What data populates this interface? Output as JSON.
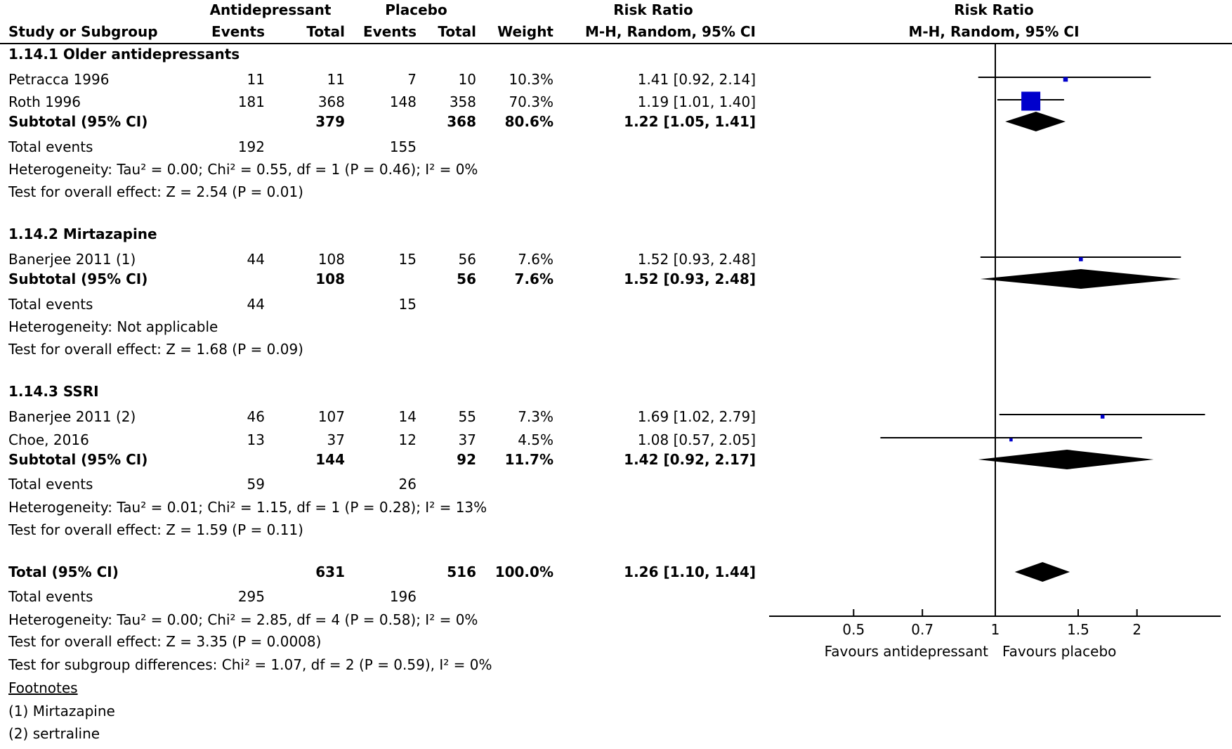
{
  "header": {
    "study_col": "Study or Subgroup",
    "group_antidepressant": "Antidepressant",
    "group_placebo": "Placebo",
    "events": "Events",
    "total": "Total",
    "weight": "Weight",
    "rr_title": "Risk Ratio",
    "rr_method": "M-H, Random, 95% CI",
    "plot_title": "Risk Ratio",
    "plot_method": "M-H, Random, 95% CI"
  },
  "rows": [
    {
      "kind": "heading",
      "label": "1.14.1 Older antidepressants"
    },
    {
      "kind": "study",
      "label": "Petracca 1996",
      "ae": "11",
      "at": "11",
      "pe": "7",
      "pt": "10",
      "weight": "10.3%",
      "rr": "1.41 [0.92, 2.14]"
    },
    {
      "kind": "study",
      "label": "Roth 1996",
      "ae": "181",
      "at": "368",
      "pe": "148",
      "pt": "358",
      "weight": "70.3%",
      "rr": "1.19 [1.01, 1.40]"
    },
    {
      "kind": "subtotal",
      "label": "Subtotal (95% CI)",
      "at": "379",
      "pt": "368",
      "weight": "80.6%",
      "rr": "1.22 [1.05, 1.41]"
    },
    {
      "kind": "events",
      "label": "Total events",
      "ae": "192",
      "pe": "155"
    },
    {
      "kind": "text",
      "label": "Heterogeneity: Tau² = 0.00; Chi² = 0.55, df = 1 (P = 0.46); I² = 0%"
    },
    {
      "kind": "text",
      "label": "Test for overall effect: Z = 2.54 (P = 0.01)"
    },
    {
      "kind": "heading",
      "label": "1.14.2 Mirtazapine"
    },
    {
      "kind": "study",
      "label": "Banerjee 2011 (1)",
      "ae": "44",
      "at": "108",
      "pe": "15",
      "pt": "56",
      "weight": "7.6%",
      "rr": "1.52 [0.93, 2.48]"
    },
    {
      "kind": "subtotal",
      "label": "Subtotal (95% CI)",
      "at": "108",
      "pt": "56",
      "weight": "7.6%",
      "rr": "1.52 [0.93, 2.48]"
    },
    {
      "kind": "events",
      "label": "Total events",
      "ae": "44",
      "pe": "15"
    },
    {
      "kind": "text",
      "label": "Heterogeneity: Not applicable"
    },
    {
      "kind": "text",
      "label": "Test for overall effect: Z = 1.68 (P = 0.09)"
    },
    {
      "kind": "heading",
      "label": "1.14.3 SSRI"
    },
    {
      "kind": "study",
      "label": "Banerjee 2011 (2)",
      "ae": "46",
      "at": "107",
      "pe": "14",
      "pt": "55",
      "weight": "7.3%",
      "rr": "1.69 [1.02, 2.79]"
    },
    {
      "kind": "study",
      "label": "Choe, 2016",
      "ae": "13",
      "at": "37",
      "pe": "12",
      "pt": "37",
      "weight": "4.5%",
      "rr": "1.08 [0.57, 2.05]"
    },
    {
      "kind": "subtotal",
      "label": "Subtotal (95% CI)",
      "at": "144",
      "pt": "92",
      "weight": "11.7%",
      "rr": "1.42 [0.92, 2.17]"
    },
    {
      "kind": "events",
      "label": "Total events",
      "ae": "59",
      "pe": "26"
    },
    {
      "kind": "text",
      "label": "Heterogeneity: Tau² = 0.01; Chi² = 1.15, df = 1 (P = 0.28); I² = 13%"
    },
    {
      "kind": "text",
      "label": "Test for overall effect: Z = 1.59 (P = 0.11)"
    },
    {
      "kind": "subtotal",
      "label": "Total (95% CI)",
      "at": "631",
      "pt": "516",
      "weight": "100.0%",
      "rr": "1.26 [1.10, 1.44]"
    },
    {
      "kind": "events",
      "label": "Total events",
      "ae": "295",
      "pe": "196"
    },
    {
      "kind": "text",
      "label": "Heterogeneity: Tau² = 0.00; Chi² = 2.85, df = 4 (P = 0.58); I² = 0%"
    },
    {
      "kind": "text",
      "label": "Test for overall effect: Z = 3.35 (P = 0.0008)"
    },
    {
      "kind": "text",
      "label": "Test for subgroup differences: Chi² = 1.07, df = 2 (P = 0.59), I² = 0%"
    },
    {
      "kind": "foothead",
      "label": "Footnotes"
    },
    {
      "kind": "text",
      "label": "(1) Mirtazapine"
    },
    {
      "kind": "text",
      "label": "(2) sertraline"
    }
  ],
  "chart_data": {
    "type": "forest",
    "x_scale": "log",
    "xlim": [
      0.36,
      2.7
    ],
    "ticks": [
      "0.5",
      "0.7",
      "1",
      "1.5",
      "2"
    ],
    "xlabel_left": "Favours antidepressant",
    "xlabel_right": "Favours placebo",
    "square_color": "#0000cc",
    "diamond_color": "#000000",
    "points": [
      {
        "row": 1,
        "shape": "square",
        "est": 1.41,
        "lo": 0.92,
        "hi": 2.14,
        "weight": 10.3
      },
      {
        "row": 2,
        "shape": "square",
        "est": 1.19,
        "lo": 1.01,
        "hi": 1.4,
        "weight": 70.3
      },
      {
        "row": 3,
        "shape": "diamond",
        "est": 1.22,
        "lo": 1.05,
        "hi": 1.41
      },
      {
        "row": 8,
        "shape": "square",
        "est": 1.52,
        "lo": 0.93,
        "hi": 2.48,
        "weight": 7.6
      },
      {
        "row": 9,
        "shape": "diamond",
        "est": 1.52,
        "lo": 0.93,
        "hi": 2.48
      },
      {
        "row": 14,
        "shape": "square",
        "est": 1.69,
        "lo": 1.02,
        "hi": 2.79,
        "weight": 7.3
      },
      {
        "row": 15,
        "shape": "square",
        "est": 1.08,
        "lo": 0.57,
        "hi": 2.05,
        "weight": 4.5
      },
      {
        "row": 16,
        "shape": "diamond",
        "est": 1.42,
        "lo": 0.92,
        "hi": 2.17
      },
      {
        "row": 20,
        "shape": "diamond",
        "est": 1.26,
        "lo": 1.1,
        "hi": 1.44
      }
    ]
  }
}
